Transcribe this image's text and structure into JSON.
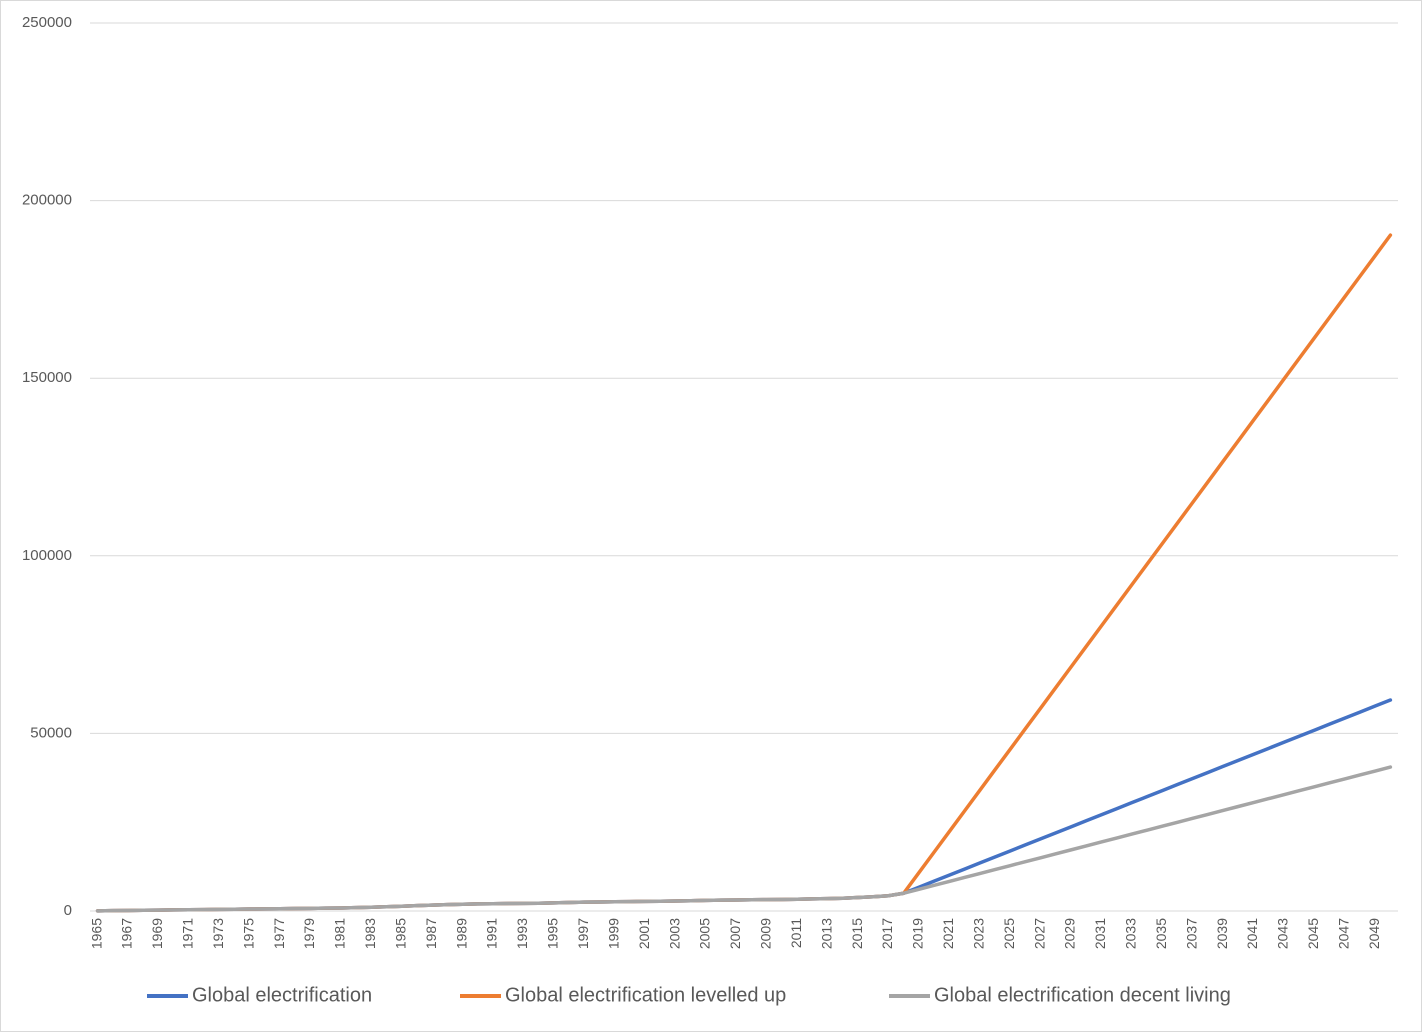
{
  "chart_data": {
    "type": "line",
    "categories": [
      "1965",
      null,
      "1967",
      null,
      "1969",
      null,
      "1971",
      null,
      "1973",
      null,
      "1975",
      null,
      "1977",
      null,
      "1979",
      null,
      "1981",
      null,
      "1983",
      null,
      "1985",
      null,
      "1987",
      null,
      "1989",
      null,
      "1991",
      null,
      "1993",
      null,
      "1995",
      null,
      "1997",
      null,
      "1999",
      null,
      "2001",
      null,
      "2003",
      null,
      "2005",
      null,
      "2007",
      null,
      "2009",
      null,
      "2011",
      null,
      "2013",
      null,
      "2015",
      null,
      "2017",
      null,
      "2019",
      null,
      "2021",
      null,
      "2023",
      null,
      "2025",
      null,
      "2027",
      null,
      "2029",
      null,
      "2031",
      null,
      "2033",
      null,
      "2035",
      null,
      "2037",
      null,
      "2039",
      null,
      "2041",
      null,
      "2043",
      null,
      "2045",
      null,
      "2047",
      null,
      "2049",
      null
    ],
    "series": [
      {
        "name": "Global electrification",
        "color": "#4472c4",
        "values": [
          50,
          100,
          150,
          200,
          250,
          300,
          350,
          400,
          450,
          500,
          550,
          600,
          650,
          700,
          750,
          800,
          850,
          950,
          1050,
          1200,
          1350,
          1500,
          1650,
          1800,
          1900,
          2000,
          2050,
          2100,
          2150,
          2200,
          2300,
          2400,
          2500,
          2550,
          2600,
          2650,
          2700,
          2750,
          2800,
          2900,
          3000,
          3050,
          3100,
          3150,
          3200,
          3250,
          3300,
          3400,
          3500,
          3600,
          3800,
          4000,
          4300,
          5000,
          6700,
          8400,
          10100,
          11800,
          13500,
          15200,
          16900,
          18600,
          20300,
          22000,
          23700,
          25400,
          27100,
          28800,
          30500,
          32200,
          33900,
          35600,
          37300,
          39000,
          40700,
          42400,
          44100,
          45800,
          47500,
          49200,
          50900,
          52600,
          54300,
          56000,
          57700,
          59400
        ]
      },
      {
        "name": "Global electrification levelled up",
        "color": "#ed7d31",
        "values": [
          50,
          100,
          150,
          200,
          250,
          300,
          350,
          400,
          450,
          500,
          550,
          600,
          650,
          700,
          750,
          800,
          850,
          950,
          1050,
          1200,
          1350,
          1500,
          1650,
          1800,
          1900,
          2000,
          2050,
          2100,
          2150,
          2200,
          2300,
          2400,
          2500,
          2550,
          2600,
          2650,
          2700,
          2750,
          2800,
          2900,
          3000,
          3050,
          3100,
          3150,
          3200,
          3250,
          3300,
          3400,
          3500,
          3600,
          3800,
          4000,
          4300,
          5000,
          10790,
          16580,
          22370,
          28160,
          33950,
          39740,
          45530,
          51320,
          57110,
          62900,
          68690,
          74480,
          80270,
          86060,
          91850,
          97640,
          103430,
          109220,
          115010,
          120800,
          126590,
          132380,
          138170,
          143960,
          149750,
          155540,
          161330,
          167120,
          172910,
          178700,
          184490,
          190280
        ]
      },
      {
        "name": "Global electrification decent living",
        "color": "#a5a5a5",
        "values": [
          50,
          100,
          150,
          200,
          250,
          300,
          350,
          400,
          450,
          500,
          550,
          600,
          650,
          700,
          750,
          800,
          850,
          950,
          1050,
          1200,
          1350,
          1500,
          1650,
          1800,
          1900,
          2000,
          2050,
          2100,
          2150,
          2200,
          2300,
          2400,
          2500,
          2550,
          2600,
          2650,
          2700,
          2750,
          2800,
          2900,
          3000,
          3050,
          3100,
          3150,
          3200,
          3250,
          3300,
          3400,
          3500,
          3600,
          3800,
          4000,
          4300,
          5000,
          6110,
          7220,
          8330,
          9440,
          10550,
          11660,
          12770,
          13880,
          14990,
          16100,
          17210,
          18320,
          19430,
          20540,
          21650,
          22760,
          23870,
          24980,
          26090,
          27200,
          28310,
          29420,
          30530,
          31640,
          32750,
          33860,
          34970,
          36080,
          37190,
          38300,
          39410,
          40520
        ]
      }
    ],
    "ylim": [
      0,
      250000
    ],
    "yticks": [
      0,
      50000,
      100000,
      150000,
      200000,
      250000
    ],
    "grid": true,
    "legend": "bottom"
  }
}
